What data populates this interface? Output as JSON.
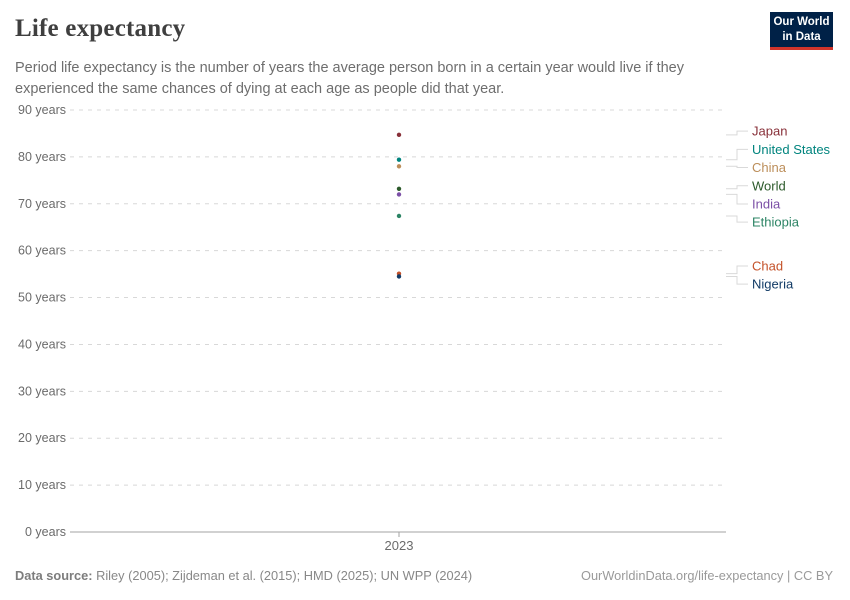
{
  "header": {
    "title": "Life expectancy",
    "subtitle": "Period life expectancy is the number of years the average person born in a certain year would live if they experienced the same chances of dying at each age as people did that year.",
    "logo": {
      "line1": "Our World",
      "line2": "in Data",
      "bg_color": "#002147",
      "bar_color": "#d0342b",
      "text_color": "#ffffff"
    }
  },
  "chart_data": {
    "type": "scatter",
    "title": "Life expectancy",
    "x": [
      2023
    ],
    "x_tick_label": "2023",
    "xlabel": "",
    "ylabel": "",
    "ylim": [
      0,
      90
    ],
    "y_ticks": [
      0,
      10,
      20,
      30,
      40,
      50,
      60,
      70,
      80,
      90
    ],
    "y_tick_suffix": " years",
    "grid": "dashed-horizontal",
    "legend_position": "right",
    "series": [
      {
        "name": "Japan",
        "year": 2023,
        "value": 84.7,
        "color": "#883039"
      },
      {
        "name": "United States",
        "year": 2023,
        "value": 79.4,
        "color": "#00847E"
      },
      {
        "name": "China",
        "year": 2023,
        "value": 78.0,
        "color": "#BC8E5A"
      },
      {
        "name": "World",
        "year": 2023,
        "value": 73.2,
        "color": "#2C5A2B"
      },
      {
        "name": "India",
        "year": 2023,
        "value": 72.0,
        "color": "#7B4FA6"
      },
      {
        "name": "Ethiopia",
        "year": 2023,
        "value": 67.4,
        "color": "#2C8465"
      },
      {
        "name": "Chad",
        "year": 2023,
        "value": 55.1,
        "color": "#C4522A"
      },
      {
        "name": "Nigeria",
        "year": 2023,
        "value": 54.5,
        "color": "#123B66"
      }
    ],
    "style": {
      "gridline_color": "#d8d8d8",
      "axis_color": "#a3a3a3",
      "tick_label_color": "#6b6b6b",
      "connector_color": "#d9d9d9"
    }
  },
  "footer": {
    "source_label": "Data source:",
    "source_text": " Riley (2005); Zijdeman et al. (2015); HMD (2025); UN WPP (2024)",
    "attribution": "OurWorldinData.org/life-expectancy | CC BY"
  }
}
